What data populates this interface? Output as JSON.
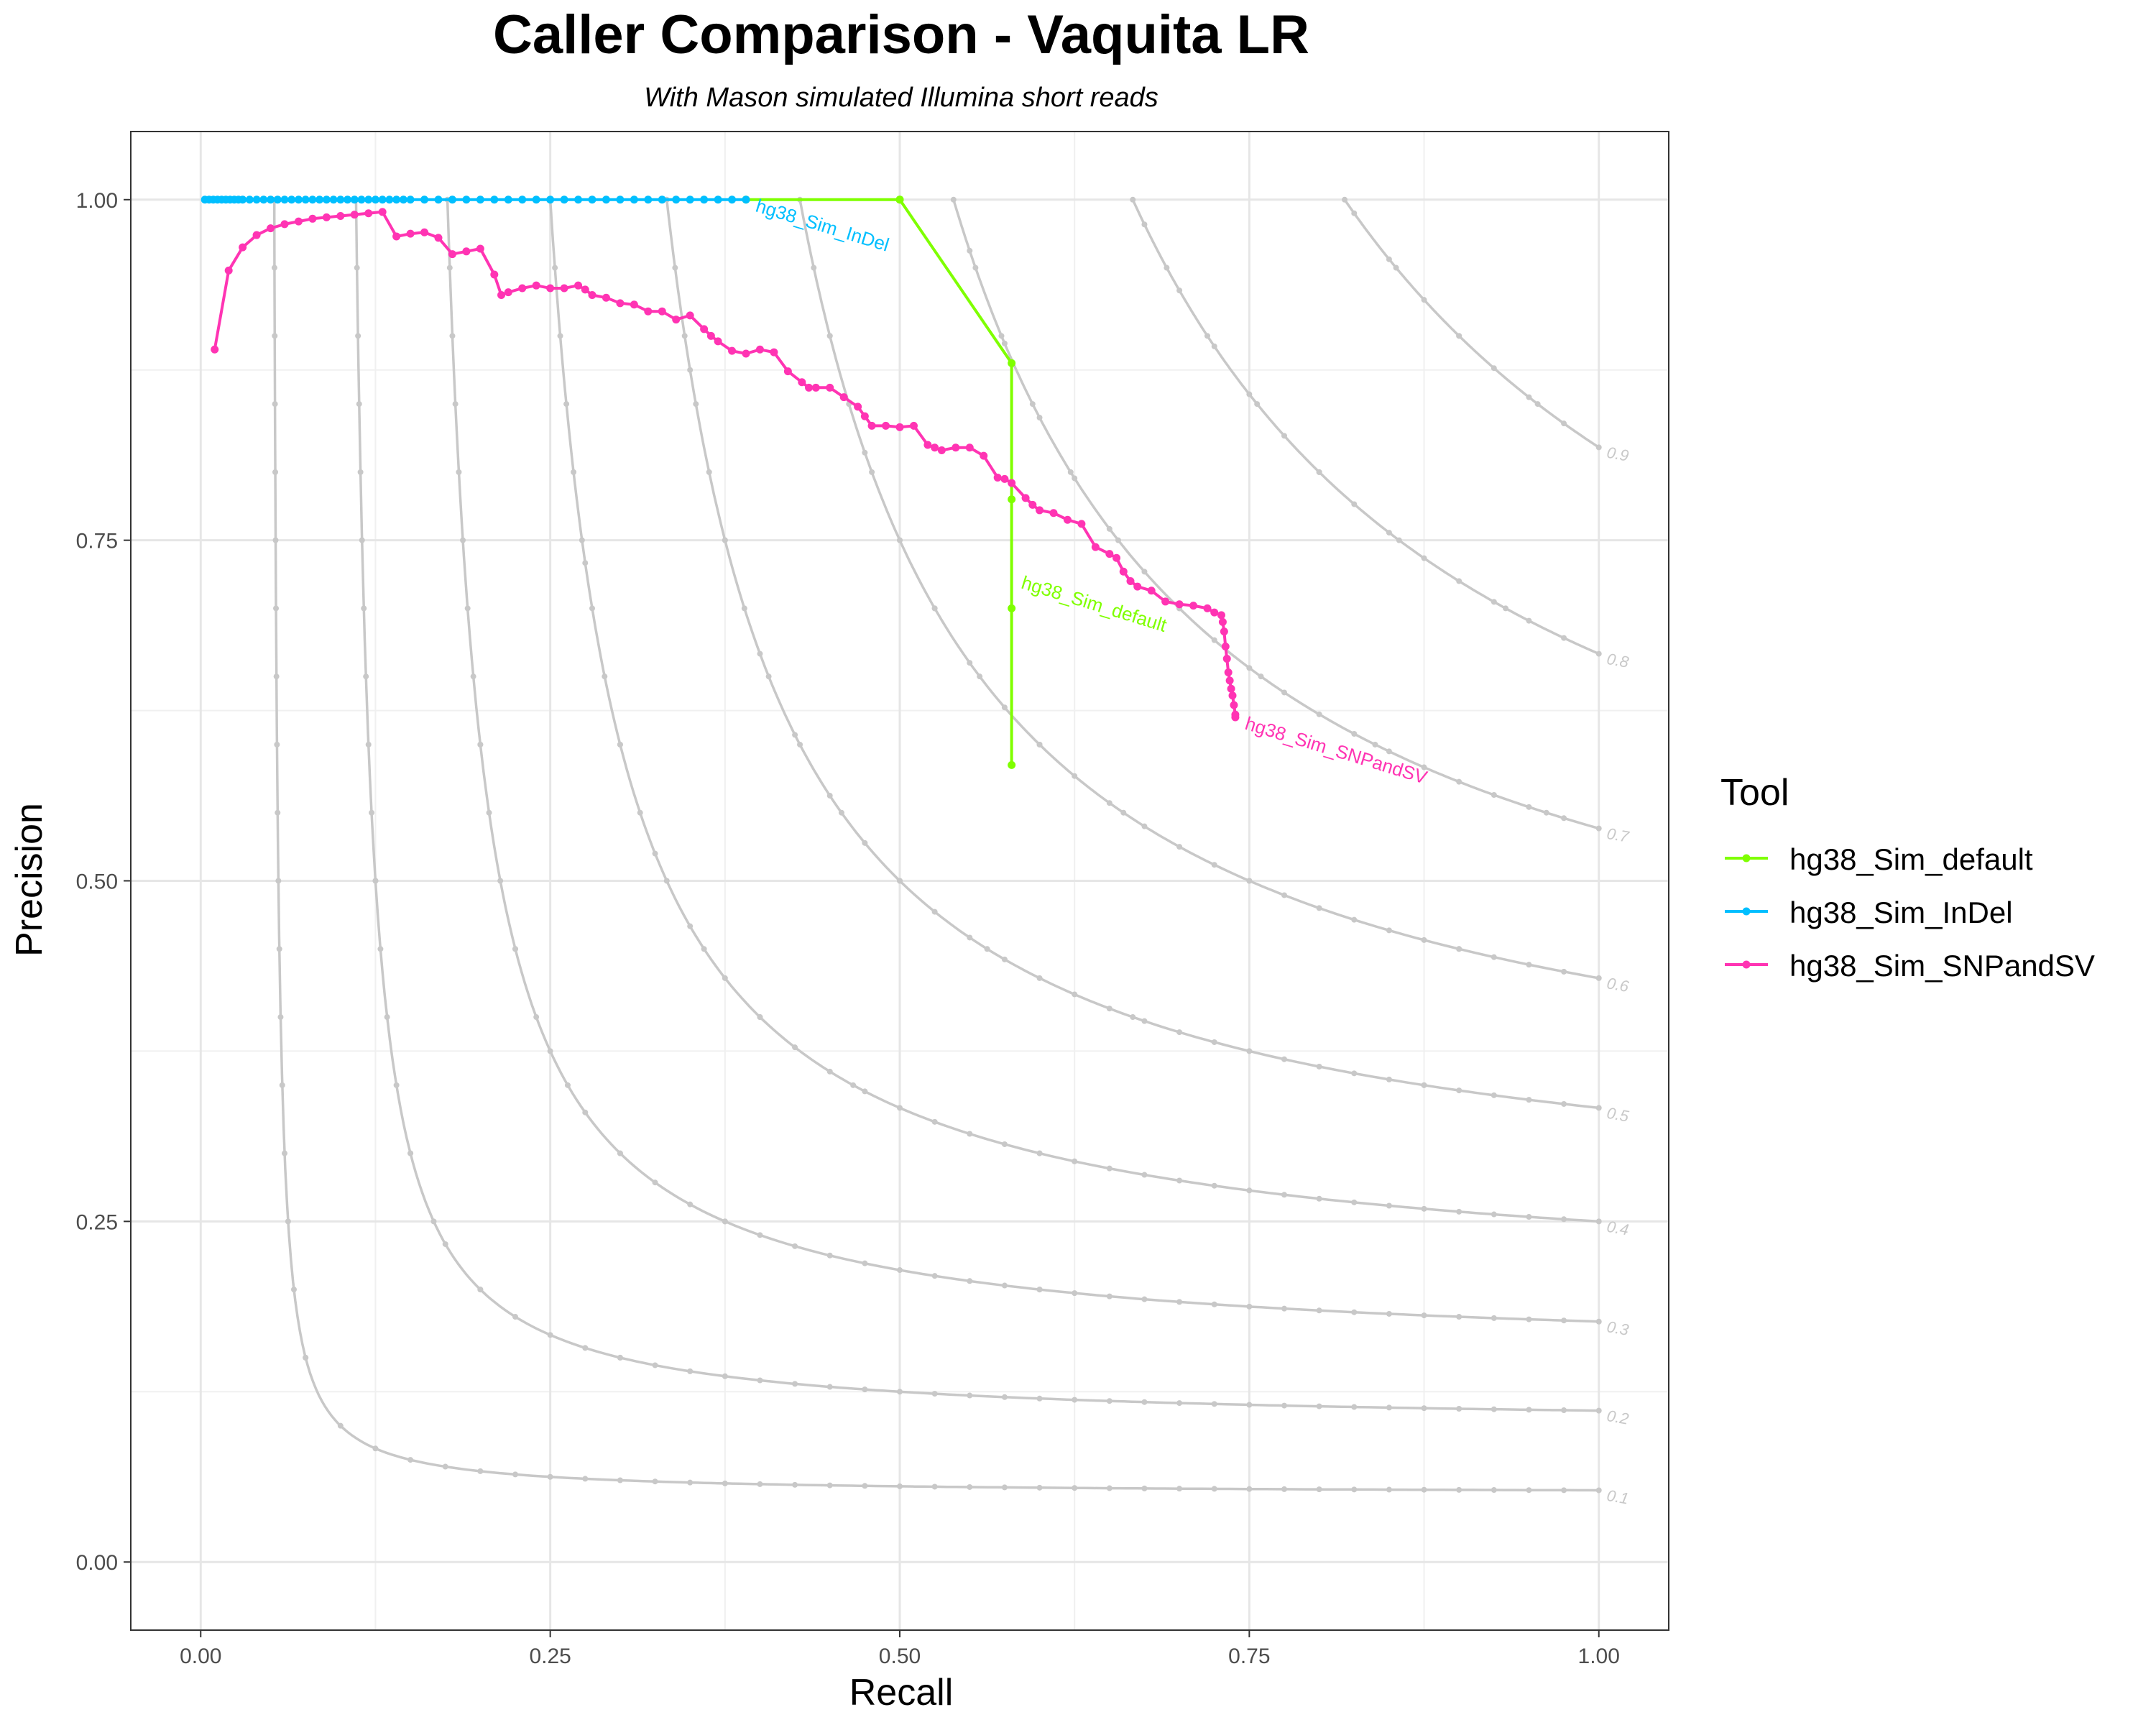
{
  "chart_data": {
    "type": "line",
    "title": "Caller Comparison - Vaquita LR",
    "subtitle": "With Mason simulated Illumina short reads",
    "xlabel": "Recall",
    "ylabel": "Precision",
    "xlim": [
      -0.05,
      1.05
    ],
    "ylim": [
      -0.05,
      1.05
    ],
    "x_ticks": [
      "0.00",
      "0.25",
      "0.50",
      "0.75",
      "1.00"
    ],
    "y_ticks": [
      "0.00",
      "0.25",
      "0.50",
      "0.75",
      "1.00"
    ],
    "grid": true,
    "legend": {
      "title": "Tool",
      "position": "right",
      "entries": [
        "hg38_Sim_default",
        "hg38_Sim_InDel",
        "hg38_Sim_SNPandSV"
      ]
    },
    "iso_f1": {
      "color": "#c8c8c8",
      "levels": [
        "0.1",
        "0.2",
        "0.3",
        "0.4",
        "0.5",
        "0.6",
        "0.7",
        "0.8",
        "0.9"
      ]
    },
    "series": [
      {
        "name": "hg38_Sim_default",
        "color": "#7fff00",
        "label": "hg38_Sim_default",
        "x": [
          0.39,
          0.5,
          0.5,
          0.58,
          0.58,
          0.58,
          0.58
        ],
        "y": [
          1.0,
          1.0,
          1.0,
          0.88,
          0.78,
          0.7,
          0.585
        ]
      },
      {
        "name": "hg38_Sim_InDel",
        "color": "#00bfff",
        "label": "hg38_Sim_InDel",
        "x": [
          0.003,
          0.006,
          0.009,
          0.012,
          0.015,
          0.018,
          0.021,
          0.024,
          0.027,
          0.03,
          0.035,
          0.04,
          0.045,
          0.05,
          0.055,
          0.06,
          0.065,
          0.07,
          0.075,
          0.08,
          0.085,
          0.09,
          0.095,
          0.1,
          0.105,
          0.11,
          0.115,
          0.12,
          0.125,
          0.13,
          0.135,
          0.14,
          0.145,
          0.15,
          0.16,
          0.17,
          0.18,
          0.19,
          0.2,
          0.21,
          0.22,
          0.23,
          0.24,
          0.25,
          0.26,
          0.27,
          0.28,
          0.29,
          0.3,
          0.31,
          0.32,
          0.33,
          0.34,
          0.35,
          0.36,
          0.37,
          0.38,
          0.39
        ],
        "y": [
          1.0,
          1.0,
          1.0,
          1.0,
          1.0,
          1.0,
          1.0,
          1.0,
          1.0,
          1.0,
          1.0,
          1.0,
          1.0,
          1.0,
          1.0,
          1.0,
          1.0,
          1.0,
          1.0,
          1.0,
          1.0,
          1.0,
          1.0,
          1.0,
          1.0,
          1.0,
          1.0,
          1.0,
          1.0,
          1.0,
          1.0,
          1.0,
          1.0,
          1.0,
          1.0,
          1.0,
          1.0,
          1.0,
          1.0,
          1.0,
          1.0,
          1.0,
          1.0,
          1.0,
          1.0,
          1.0,
          1.0,
          1.0,
          1.0,
          1.0,
          1.0,
          1.0,
          1.0,
          1.0,
          1.0,
          1.0,
          1.0,
          1.0
        ]
      },
      {
        "name": "hg38_Sim_SNPandSV",
        "color": "#ff34b3",
        "label": "hg38_Sim_SNPandSV",
        "x": [
          0.01,
          0.02,
          0.03,
          0.04,
          0.05,
          0.06,
          0.07,
          0.08,
          0.09,
          0.1,
          0.11,
          0.12,
          0.13,
          0.14,
          0.15,
          0.16,
          0.17,
          0.18,
          0.19,
          0.2,
          0.21,
          0.215,
          0.22,
          0.23,
          0.24,
          0.25,
          0.26,
          0.27,
          0.275,
          0.28,
          0.29,
          0.3,
          0.31,
          0.32,
          0.33,
          0.34,
          0.35,
          0.36,
          0.365,
          0.37,
          0.38,
          0.39,
          0.4,
          0.41,
          0.42,
          0.43,
          0.435,
          0.44,
          0.45,
          0.46,
          0.47,
          0.475,
          0.48,
          0.49,
          0.5,
          0.51,
          0.52,
          0.525,
          0.53,
          0.54,
          0.55,
          0.56,
          0.57,
          0.575,
          0.58,
          0.59,
          0.595,
          0.6,
          0.61,
          0.62,
          0.63,
          0.64,
          0.65,
          0.655,
          0.66,
          0.665,
          0.67,
          0.68,
          0.69,
          0.7,
          0.71,
          0.72,
          0.725,
          0.73,
          0.731,
          0.732,
          0.733,
          0.734,
          0.735,
          0.736,
          0.737,
          0.738,
          0.739,
          0.74,
          0.74
        ],
        "y": [
          0.89,
          0.948,
          0.965,
          0.974,
          0.979,
          0.982,
          0.984,
          0.986,
          0.987,
          0.988,
          0.989,
          0.99,
          0.991,
          0.973,
          0.975,
          0.976,
          0.972,
          0.96,
          0.962,
          0.964,
          0.945,
          0.93,
          0.932,
          0.935,
          0.937,
          0.935,
          0.935,
          0.937,
          0.934,
          0.93,
          0.928,
          0.924,
          0.923,
          0.918,
          0.918,
          0.912,
          0.915,
          0.905,
          0.9,
          0.896,
          0.889,
          0.887,
          0.89,
          0.888,
          0.874,
          0.866,
          0.862,
          0.862,
          0.862,
          0.855,
          0.848,
          0.841,
          0.834,
          0.834,
          0.833,
          0.834,
          0.82,
          0.818,
          0.816,
          0.818,
          0.818,
          0.812,
          0.796,
          0.795,
          0.792,
          0.781,
          0.776,
          0.772,
          0.77,
          0.765,
          0.762,
          0.745,
          0.74,
          0.737,
          0.727,
          0.72,
          0.716,
          0.713,
          0.705,
          0.703,
          0.702,
          0.7,
          0.697,
          0.695,
          0.69,
          0.683,
          0.672,
          0.663,
          0.653,
          0.647,
          0.641,
          0.636,
          0.629,
          0.622,
          0.62
        ]
      }
    ]
  }
}
